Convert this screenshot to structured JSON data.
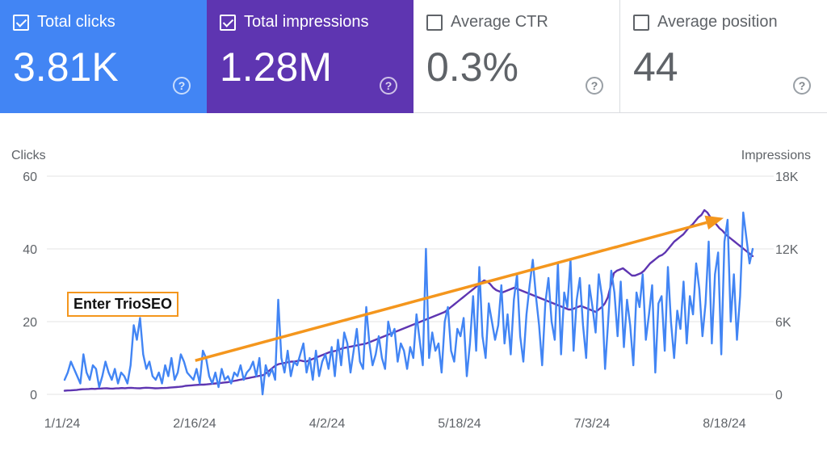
{
  "cards": [
    {
      "label": "Total clicks",
      "value": "3.81K",
      "checked": true,
      "color": "#4285f4"
    },
    {
      "label": "Total impressions",
      "value": "1.28M",
      "checked": true,
      "color": "#5e35b1"
    },
    {
      "label": "Average CTR",
      "value": "0.3%",
      "checked": false
    },
    {
      "label": "Average position",
      "value": "44",
      "checked": false
    }
  ],
  "help_glyph": "?",
  "chart_data": {
    "type": "line",
    "xlabel": "",
    "left_axis": {
      "label": "Clicks",
      "ticks": [
        "60",
        "40",
        "20",
        "0"
      ],
      "range": [
        0,
        60
      ]
    },
    "right_axis": {
      "label": "Impressions",
      "ticks": [
        "18K",
        "12K",
        "6K",
        "0"
      ],
      "range": [
        0,
        18000
      ]
    },
    "x_ticks": [
      "1/1/24",
      "2/16/24",
      "4/2/24",
      "5/18/24",
      "7/3/24",
      "8/18/24"
    ],
    "x_range": [
      "2024-01-01",
      "2024-08-25"
    ],
    "grid": true,
    "series": [
      {
        "axis": "left",
        "color": "#4285f4",
        "values": [
          4,
          6,
          9,
          7,
          5,
          3,
          11,
          6,
          4,
          8,
          7,
          2,
          5,
          9,
          6,
          4,
          7,
          3,
          6,
          5,
          3,
          8,
          19,
          15,
          21,
          11,
          7,
          9,
          5,
          4,
          6,
          3,
          8,
          5,
          10,
          4,
          6,
          11,
          9,
          6,
          5,
          4,
          7,
          3,
          12,
          10,
          5,
          3,
          6,
          2,
          7,
          4,
          5,
          3,
          6,
          5,
          8,
          4,
          6,
          7,
          9,
          5,
          10,
          0,
          8,
          5,
          7,
          4,
          26,
          10,
          6,
          12,
          5,
          9,
          8,
          11,
          14,
          6,
          10,
          4,
          12,
          5,
          9,
          11,
          7,
          13,
          5,
          15,
          8,
          17,
          14,
          6,
          12,
          18,
          9,
          7,
          24,
          14,
          8,
          11,
          16,
          10,
          7,
          20,
          16,
          18,
          9,
          14,
          12,
          7,
          13,
          10,
          22,
          15,
          8,
          40,
          10,
          17,
          12,
          14,
          6,
          20,
          24,
          12,
          9,
          18,
          16,
          21,
          5,
          14,
          27,
          12,
          35,
          16,
          10,
          25,
          20,
          15,
          19,
          30,
          14,
          22,
          11,
          26,
          33,
          16,
          9,
          22,
          30,
          37,
          27,
          19,
          8,
          25,
          32,
          20,
          15,
          36,
          11,
          28,
          24,
          37,
          12,
          26,
          32,
          19,
          10,
          30,
          24,
          17,
          33,
          27,
          7,
          20,
          34,
          28,
          16,
          31,
          13,
          26,
          19,
          8,
          28,
          24,
          33,
          15,
          22,
          30,
          6,
          25,
          27,
          12,
          35,
          20,
          10,
          23,
          18,
          31,
          14,
          27,
          22,
          36,
          29,
          16,
          25,
          42,
          14,
          33,
          39,
          11,
          42,
          48,
          20,
          33,
          15,
          27,
          50,
          43,
          36,
          40
        ]
      },
      {
        "axis": "right",
        "color": "#5e35b1",
        "values": [
          300,
          320,
          330,
          350,
          360,
          400,
          420,
          430,
          440,
          460,
          450,
          470,
          480,
          490,
          500,
          480,
          470,
          490,
          500,
          520,
          510,
          530,
          540,
          520,
          510,
          500,
          530,
          550,
          540,
          520,
          500,
          510,
          520,
          530,
          540,
          560,
          580,
          600,
          620,
          650,
          700,
          720,
          740,
          760,
          780,
          800,
          800,
          820,
          850,
          870,
          900,
          920,
          950,
          980,
          1000,
          1050,
          1100,
          1150,
          1200,
          1250,
          1300,
          1350,
          1400,
          1450,
          1500,
          1550,
          1600,
          1800,
          2000,
          2200,
          2400,
          2500,
          2550,
          2600,
          2650,
          2700,
          2700,
          2750,
          2800,
          2750,
          2700,
          2800,
          2900,
          3000,
          3100,
          3200,
          3300,
          3400,
          3500,
          3550,
          3600,
          3700,
          3800,
          3850,
          3900,
          3950,
          4000,
          4050,
          4100,
          4150,
          4200,
          4300,
          4400,
          4500,
          4600,
          4700,
          4800,
          4900,
          5000,
          5100,
          5200,
          5300,
          5400,
          5500,
          5600,
          5700,
          5800,
          5900,
          6000,
          6100,
          6200,
          6300,
          6400,
          6500,
          6600,
          6700,
          6800,
          7000,
          7200,
          7400,
          7600,
          7800,
          8000,
          8200,
          8400,
          8600,
          8800,
          9000,
          9200,
          9400,
          9300,
          9100,
          8800,
          8600,
          8500,
          8400,
          8500,
          8600,
          8700,
          8800,
          8700,
          8600,
          8500,
          8400,
          8300,
          8200,
          8100,
          8000,
          7900,
          7800,
          7700,
          7600,
          7500,
          7400,
          7300,
          7200,
          7100,
          7000,
          7000,
          7100,
          7200,
          7300,
          7200,
          7100,
          7000,
          6900,
          6800,
          7000,
          7200,
          7500,
          8000,
          9000,
          10000,
          10200,
          10300,
          10400,
          10200,
          10000,
          9800,
          9800,
          9900,
          10000,
          10200,
          10500,
          10800,
          11000,
          11200,
          11400,
          11500,
          11700,
          12000,
          12300,
          12600,
          12800,
          13000,
          13200,
          13500,
          13800,
          14000,
          14300,
          14600,
          14800,
          15200,
          15000,
          14600,
          14300,
          14000,
          13700,
          13500,
          13200,
          13000,
          12800,
          12600,
          12400,
          12200,
          12000,
          11800,
          11600,
          11400
        ]
      }
    ],
    "annotations": [
      {
        "type": "label",
        "text": "Enter TrioSEO",
        "x": "2024-01-27",
        "y": 25,
        "border_color": "#f4961d"
      },
      {
        "type": "arrow",
        "color": "#f4961d",
        "from": {
          "x": "2024-02-15",
          "y": 9.3
        },
        "to": {
          "x": "2024-08-15",
          "y": 48.5
        }
      }
    ]
  }
}
